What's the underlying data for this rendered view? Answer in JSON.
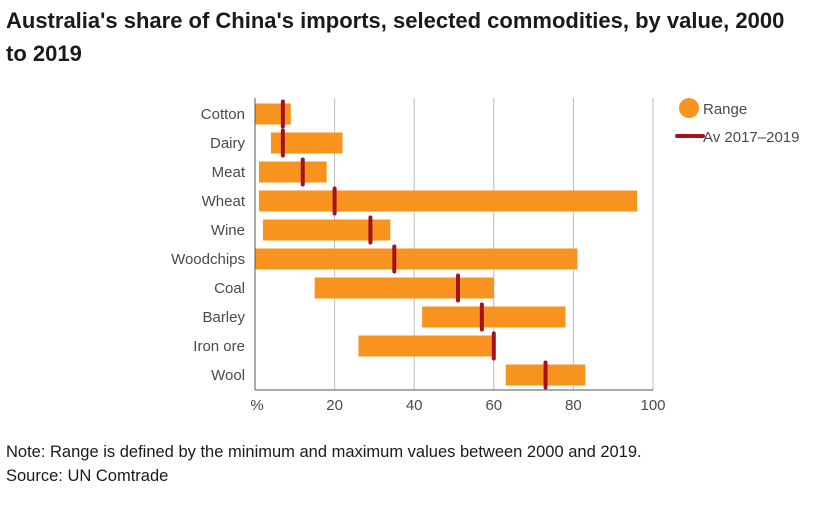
{
  "title": "Australia's share of China's imports, selected commodities, by value, 2000 to 2019",
  "note": "Note: Range is defined by the minimum and maximum values between 2000 and 2019.",
  "source": "Source: UN Comtrade",
  "colors": {
    "range": "#f7931e",
    "average": "#a3121f",
    "grid": "#bbbbbb",
    "axis": "#555555",
    "text": "#4a4a4a"
  },
  "chart_data": {
    "type": "bar",
    "subtype": "range-with-marker",
    "xlim": [
      0,
      100
    ],
    "x_unit_label": "%",
    "xticks": [
      20,
      40,
      60,
      80,
      100
    ],
    "grid": "vertical",
    "legend_position": "top-right",
    "legend": [
      {
        "key": "range",
        "label": "Range"
      },
      {
        "key": "average",
        "label": "Av 2017–2019"
      }
    ],
    "categories": [
      "Cotton",
      "Dairy",
      "Meat",
      "Wheat",
      "Wine",
      "Woodchips",
      "Coal",
      "Barley",
      "Iron ore",
      "Wool"
    ],
    "range_min": [
      0,
      4,
      1,
      1,
      2,
      0,
      15,
      42,
      26,
      63
    ],
    "range_max": [
      9,
      22,
      18,
      96,
      34,
      81,
      60,
      78,
      60,
      83
    ],
    "average": [
      7,
      7,
      12,
      20,
      29,
      35,
      51,
      57,
      60,
      73
    ]
  }
}
